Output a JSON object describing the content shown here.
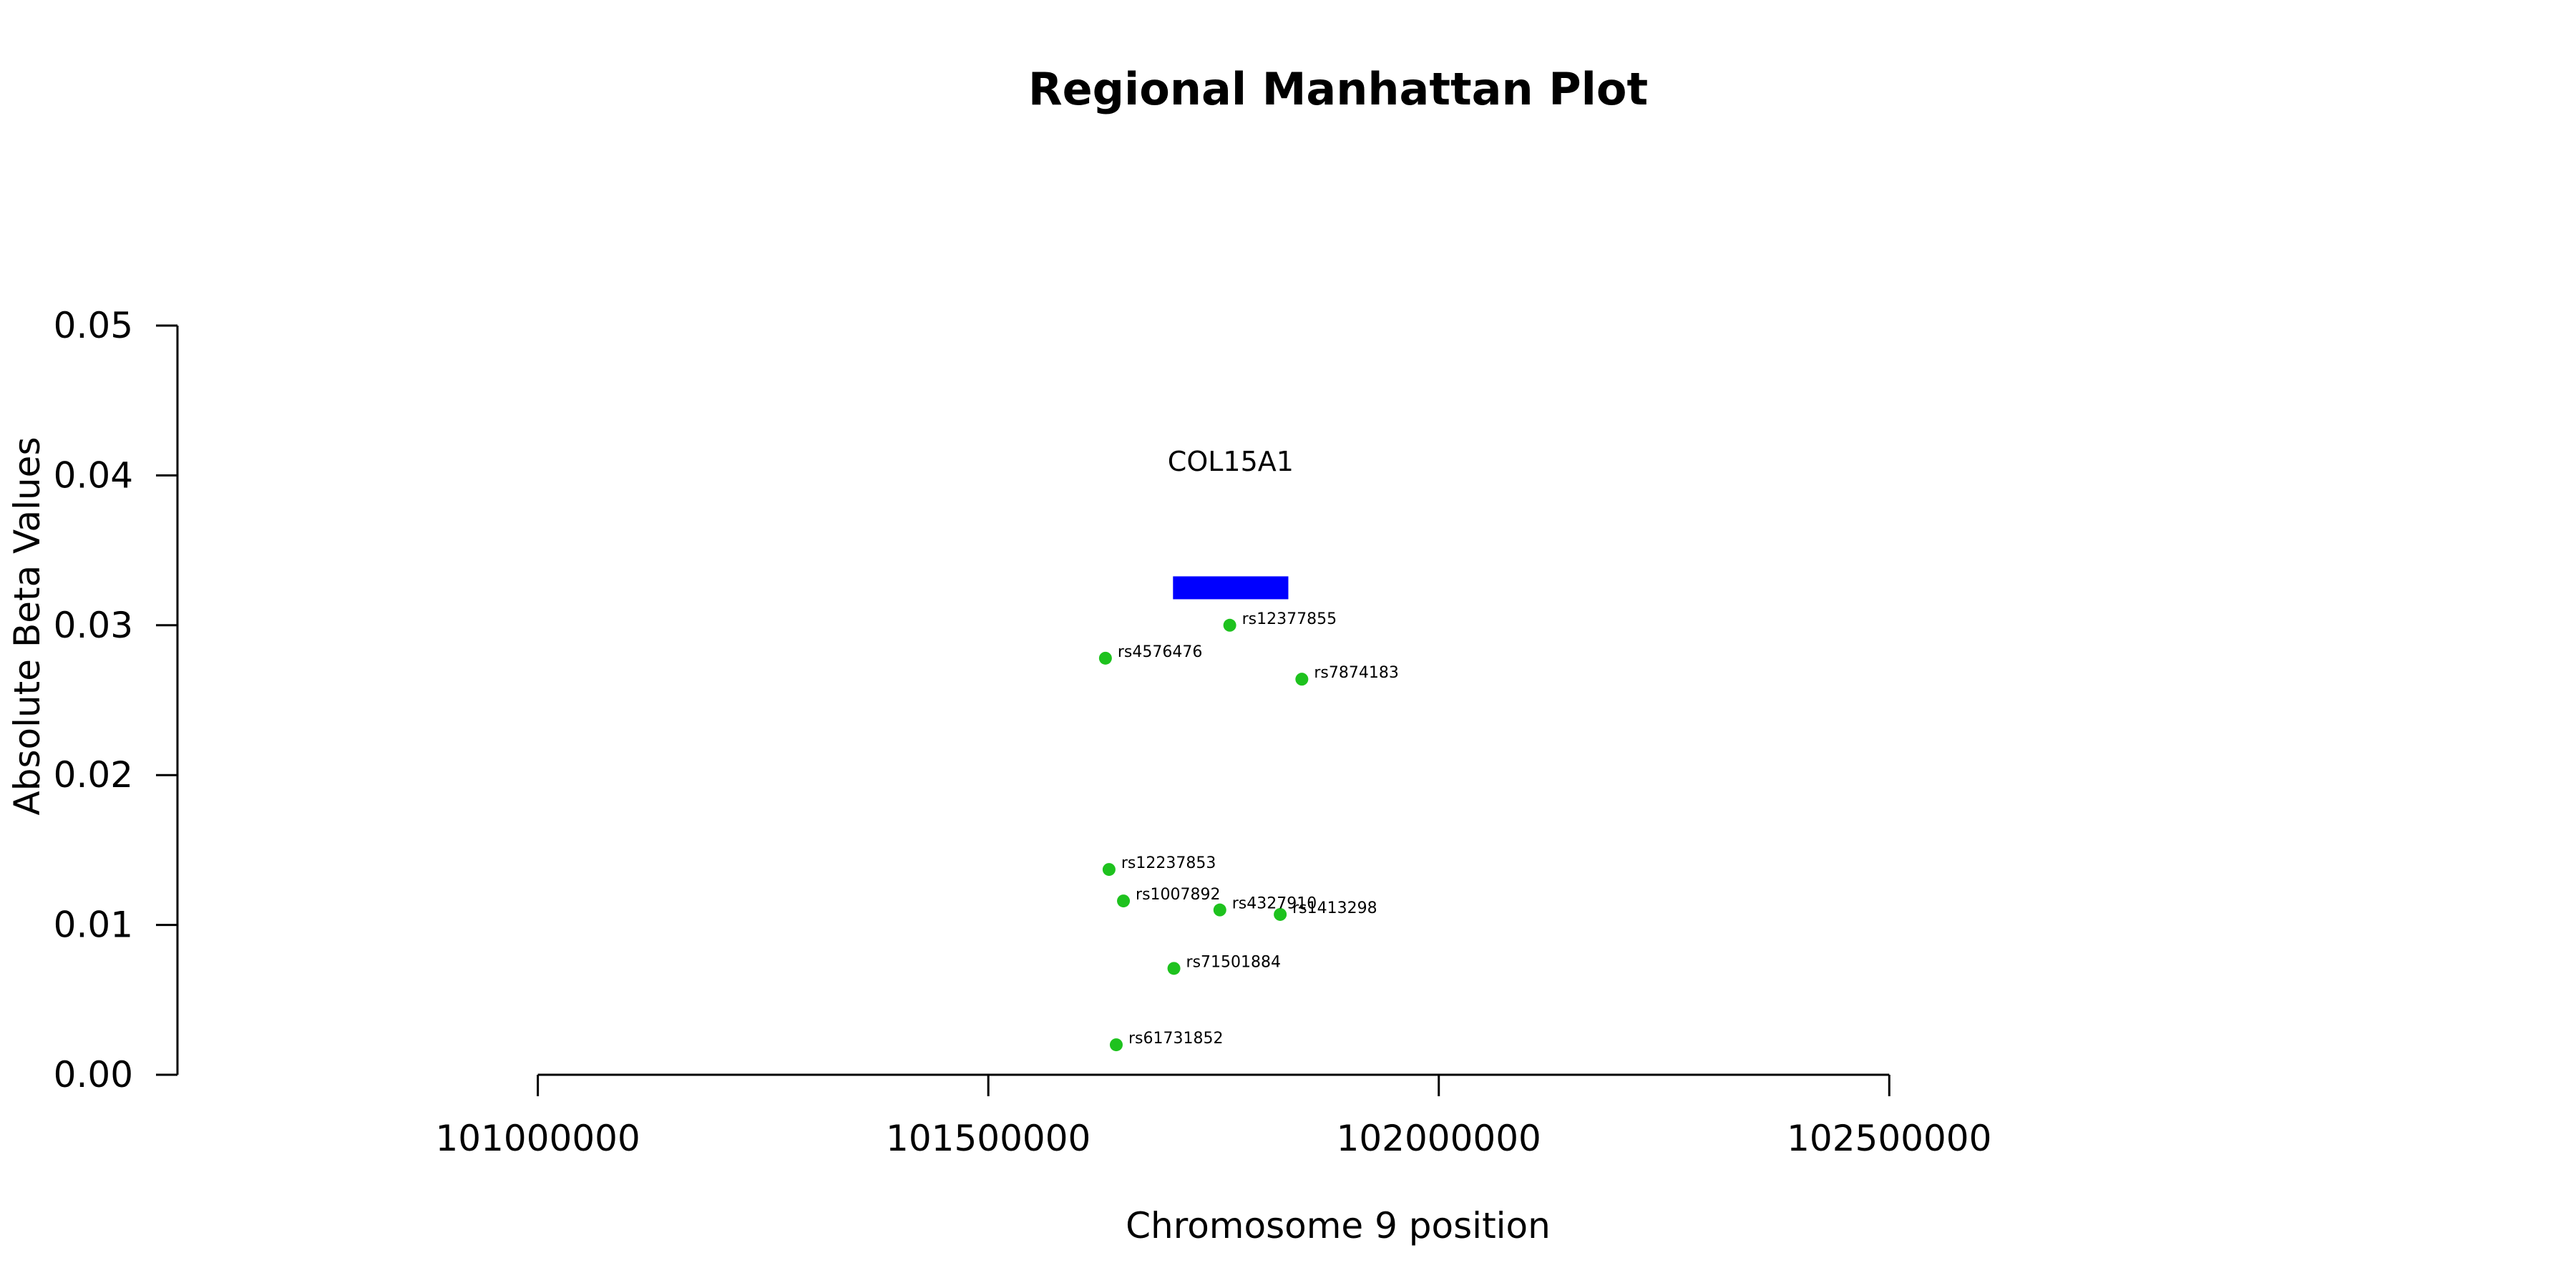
{
  "chart_data": {
    "type": "scatter",
    "title": "Regional Manhattan Plot",
    "xlabel": "Chromosome 9 position",
    "ylabel": "Absolute Beta Values",
    "xlim": [
      100600000,
      102800000
    ],
    "ylim": [
      0,
      0.05
    ],
    "x_axis_range": [
      101000000,
      102500000
    ],
    "xticks": [
      101000000,
      101500000,
      102000000,
      102500000
    ],
    "xtick_labels": [
      "101000000",
      "101500000",
      "102000000",
      "102500000"
    ],
    "yticks": [
      0,
      0.01,
      0.02,
      0.03,
      0.04,
      0.05
    ],
    "ytick_labels": [
      "0.00",
      "0.01",
      "0.02",
      "0.03",
      "0.04",
      "0.05"
    ],
    "grid": false,
    "point_color": "#1ec21e",
    "gene_color": "#0000ff",
    "gene": {
      "name": "COL15A1",
      "start": 101705000,
      "end": 101833000,
      "y": 0.0325,
      "label_y": 0.0403
    },
    "series": [
      {
        "points": [
          {
            "id": "rs12377855",
            "x": 101768000,
            "y": 0.03
          },
          {
            "id": "rs4576476",
            "x": 101630000,
            "y": 0.0278
          },
          {
            "id": "rs7874183",
            "x": 101848000,
            "y": 0.0264
          },
          {
            "id": "rs12237853",
            "x": 101634000,
            "y": 0.0137
          },
          {
            "id": "rs1007892",
            "x": 101650000,
            "y": 0.0116
          },
          {
            "id": "rs4327910",
            "x": 101757000,
            "y": 0.011
          },
          {
            "id": "rs1413298",
            "x": 101824000,
            "y": 0.0107
          },
          {
            "id": "rs71501884",
            "x": 101706000,
            "y": 0.0071
          },
          {
            "id": "rs61731852",
            "x": 101642000,
            "y": 0.002
          }
        ]
      }
    ]
  }
}
